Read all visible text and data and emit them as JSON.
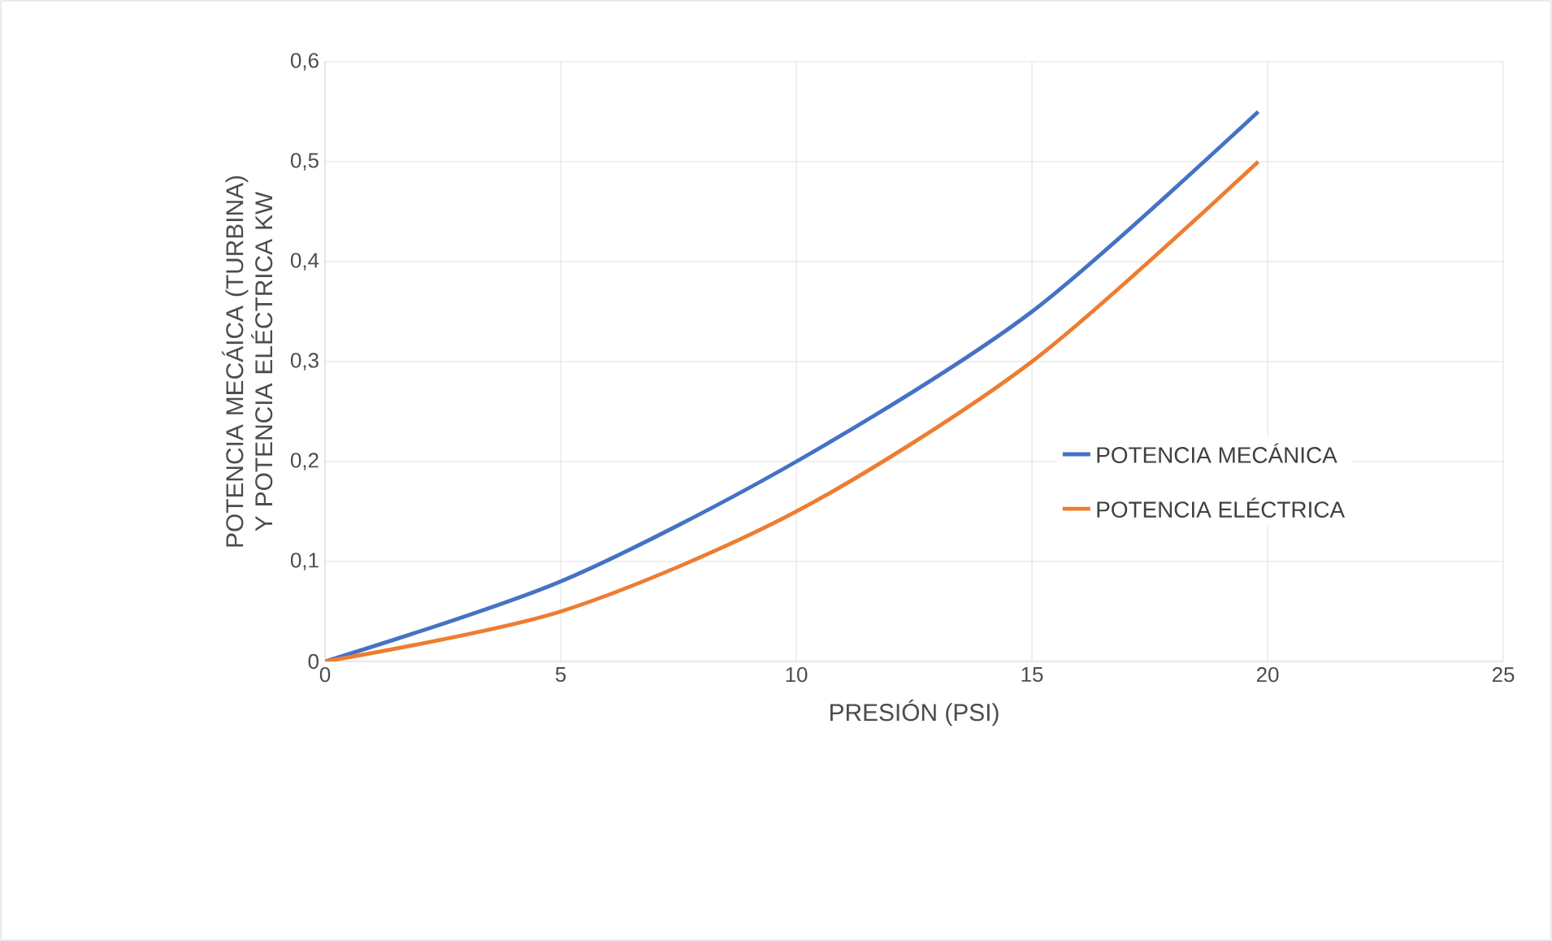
{
  "chart_data": {
    "type": "line",
    "xlabel": "PRESIÓN (PSI)",
    "ylabel": "POTENCIA MECÁICA (TURBINA)  Y POTENCIA ELÉCTRICA KW",
    "x": [
      0,
      5,
      10,
      15,
      19.8
    ],
    "series": [
      {
        "name": "POTENCIA MECÁNICA",
        "color": "#4472c4",
        "values": [
          0,
          0.08,
          0.2,
          0.35,
          0.55
        ]
      },
      {
        "name": "POTENCIA ELÉCTRICA",
        "color": "#ed7d31",
        "values": [
          0,
          0.05,
          0.15,
          0.3,
          0.5
        ]
      }
    ],
    "xlim": [
      0,
      25
    ],
    "xticks": [
      0,
      5,
      10,
      15,
      20,
      25
    ],
    "ylim": [
      0,
      0.6
    ],
    "yticks": [
      0,
      {
        "value": 0.1,
        "label": "0,1"
      },
      {
        "value": 0.2,
        "label": "0,2"
      },
      {
        "value": 0.3,
        "label": "0,3"
      },
      {
        "value": 0.4,
        "label": "0,4"
      },
      {
        "value": 0.5,
        "label": "0,5"
      },
      {
        "value": 0.6,
        "label": "0,6"
      }
    ],
    "grid": true,
    "legend": "right"
  }
}
